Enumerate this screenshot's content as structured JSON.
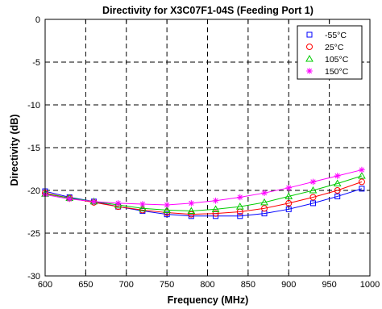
{
  "chart_data": {
    "type": "line",
    "title": "Directivity for X3C07F1-04S (Feeding Port 1)",
    "xlabel": "Frequency (MHz)",
    "ylabel": "Directivity (dB)",
    "xlim": [
      600,
      1000
    ],
    "ylim": [
      -30,
      0
    ],
    "xticks": [
      600,
      650,
      700,
      750,
      800,
      850,
      900,
      950,
      1000
    ],
    "yticks": [
      0,
      -5,
      -10,
      -15,
      -20,
      -25,
      -30
    ],
    "grid": "dashed",
    "legend_position": "top-right",
    "x": [
      600,
      630,
      660,
      690,
      720,
      750,
      780,
      810,
      840,
      870,
      900,
      930,
      960,
      990
    ],
    "series": [
      {
        "name": "-55°C",
        "color": "#0000ff",
        "marker": "square",
        "values": [
          -20.1,
          -20.8,
          -21.3,
          -21.9,
          -22.4,
          -22.8,
          -23.0,
          -23.0,
          -23.0,
          -22.7,
          -22.2,
          -21.5,
          -20.7,
          -19.8
        ]
      },
      {
        "name": "25°C",
        "color": "#ff0000",
        "marker": "circle",
        "values": [
          -20.3,
          -20.9,
          -21.4,
          -21.9,
          -22.3,
          -22.6,
          -22.8,
          -22.7,
          -22.5,
          -22.1,
          -21.5,
          -20.8,
          -20.0,
          -19.0
        ]
      },
      {
        "name": "105°C",
        "color": "#00cc00",
        "marker": "triangle",
        "values": [
          -20.4,
          -20.9,
          -21.3,
          -21.7,
          -22.1,
          -22.3,
          -22.4,
          -22.2,
          -21.9,
          -21.4,
          -20.7,
          -20.0,
          -19.2,
          -18.3
        ]
      },
      {
        "name": "150°C",
        "color": "#ff00ff",
        "marker": "asterisk",
        "values": [
          -20.5,
          -21.0,
          -21.3,
          -21.5,
          -21.6,
          -21.7,
          -21.5,
          -21.2,
          -20.8,
          -20.3,
          -19.7,
          -19.0,
          -18.3,
          -17.6
        ]
      }
    ]
  }
}
